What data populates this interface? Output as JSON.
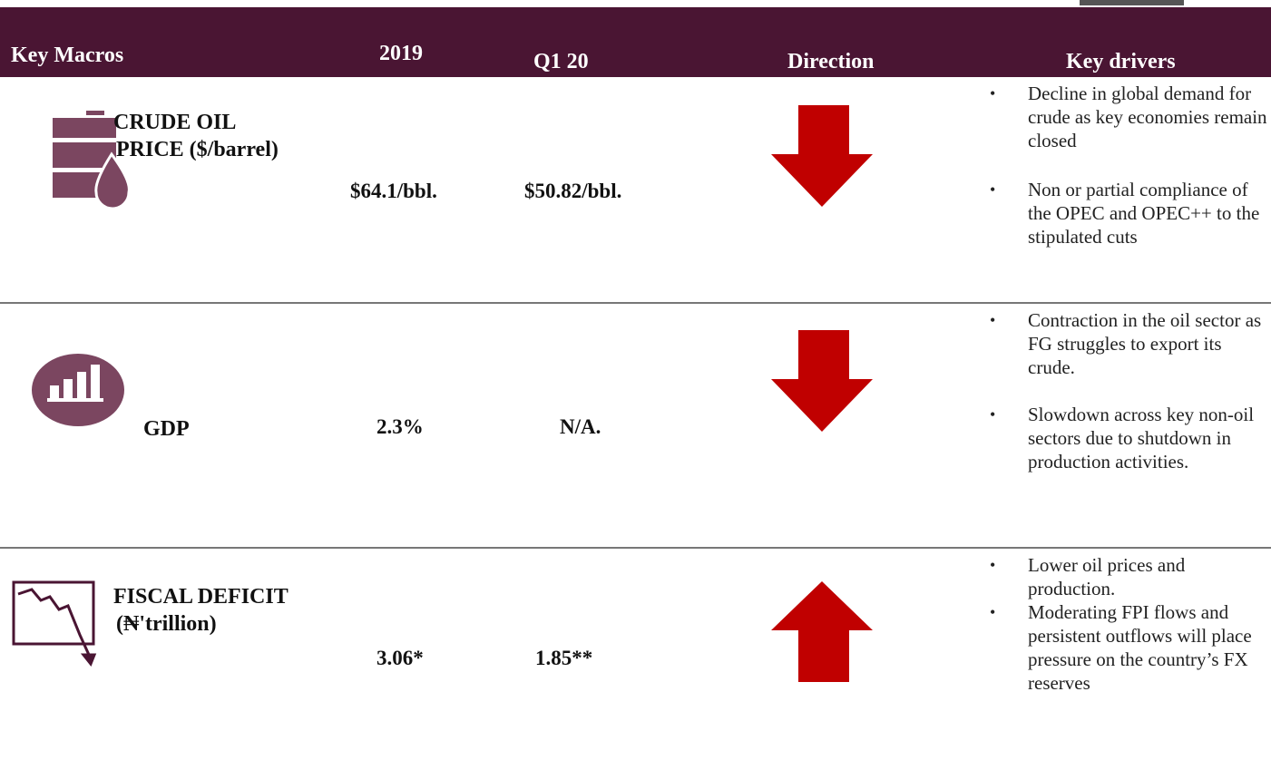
{
  "header": {
    "columns": [
      "Key Macros",
      "2019",
      "Q1 20",
      "Direction",
      "Key drivers"
    ]
  },
  "rows": [
    {
      "macro": [
        "CRUDE OIL",
        "PRICE ($/barrel)"
      ],
      "y2019": "$64.1/bbl.",
      "q120": "$50.82/bbl.",
      "drivers": [
        "Decline in global demand for crude as key economies remain closed",
        "Non or partial compliance of the OPEC and OPEC++ to the stipulated cuts"
      ]
    },
    {
      "macro": [
        "GDP"
      ],
      "y2019": "2.3%",
      "q120": "N/A.",
      "drivers": [
        "Contraction in the oil sector as FG struggles to export its crude.",
        "Slowdown across key non-oil sectors due to shutdown in production activities."
      ]
    },
    {
      "macro": [
        "FISCAL DEFICIT",
        "(₦'trillion)"
      ],
      "y2019": "3.06*",
      "q120": "1.85**",
      "drivers": [
        "Lower oil prices and production.",
        "Moderating FPI flows and persistent outflows will place pressure on the country’s FX reserves"
      ]
    }
  ]
}
